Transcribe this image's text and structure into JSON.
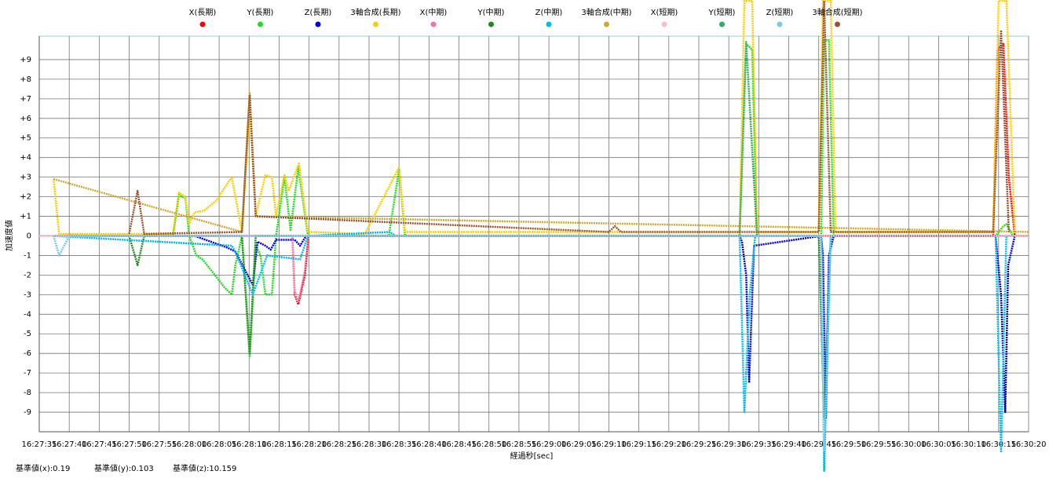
{
  "chart_data": {
    "type": "line",
    "x_label": "経過秒[sec]",
    "y_label": "加速度値",
    "xlim": [
      0,
      165
    ],
    "ylim": [
      -10,
      10.2
    ],
    "grid": true,
    "legend": "top",
    "xticks": [
      {
        "value": 0,
        "label": "16:27:35"
      },
      {
        "value": 5,
        "label": "16:27:40"
      },
      {
        "value": 10,
        "label": "16:27:45"
      },
      {
        "value": 15,
        "label": "16:27:50"
      },
      {
        "value": 20,
        "label": "16:27:55"
      },
      {
        "value": 25,
        "label": "16:28:00"
      },
      {
        "value": 30,
        "label": "16:28:05"
      },
      {
        "value": 35,
        "label": "16:28:10"
      },
      {
        "value": 40,
        "label": "16:28:15"
      },
      {
        "value": 45,
        "label": "16:28:20"
      },
      {
        "value": 50,
        "label": "16:28:25"
      },
      {
        "value": 55,
        "label": "16:28:30"
      },
      {
        "value": 60,
        "label": "16:28:35"
      },
      {
        "value": 65,
        "label": "16:28:40"
      },
      {
        "value": 70,
        "label": "16:28:45"
      },
      {
        "value": 75,
        "label": "16:28:50"
      },
      {
        "value": 80,
        "label": "16:28:55"
      },
      {
        "value": 85,
        "label": "16:29:00"
      },
      {
        "value": 90,
        "label": "16:29:05"
      },
      {
        "value": 95,
        "label": "16:29:10"
      },
      {
        "value": 100,
        "label": "16:29:15"
      },
      {
        "value": 105,
        "label": "16:29:20"
      },
      {
        "value": 110,
        "label": "16:29:25"
      },
      {
        "value": 115,
        "label": "16:29:30"
      },
      {
        "value": 120,
        "label": "16:29:35"
      },
      {
        "value": 125,
        "label": "16:29:40"
      },
      {
        "value": 130,
        "label": "16:29:45"
      },
      {
        "value": 135,
        "label": "16:29:50"
      },
      {
        "value": 140,
        "label": "16:29:55"
      },
      {
        "value": 145,
        "label": "16:30:00"
      },
      {
        "value": 150,
        "label": "16:30:05"
      },
      {
        "value": 155,
        "label": "16:30:10"
      },
      {
        "value": 160,
        "label": "16:30:15"
      },
      {
        "value": 165,
        "label": "16:30:20"
      }
    ],
    "yticks": [
      -9,
      -8,
      -7,
      -6,
      -5,
      -4,
      -3,
      -2,
      -1,
      0,
      {
        "value": 1,
        "label": "+1"
      },
      {
        "value": 2,
        "label": "+2"
      },
      {
        "value": 3,
        "label": "+3"
      },
      {
        "value": 4,
        "label": "+4"
      },
      {
        "value": 5,
        "label": "+5"
      },
      {
        "value": 6,
        "label": "+6"
      },
      {
        "value": 7,
        "label": "+7"
      },
      {
        "value": 8,
        "label": "+8"
      },
      {
        "value": 9,
        "label": "+9"
      }
    ],
    "series": [
      {
        "name": "X(長期)",
        "color": "#ff0000",
        "x": [
          2.4,
          42.2,
          42.6,
          43.2,
          44.3,
          44.9,
          159.1,
          159.8,
          160.8,
          161.7,
          162.7
        ],
        "values": [
          0,
          0,
          -3.0,
          -3.5,
          -2.0,
          0,
          0,
          9.5,
          9.8,
          3.0,
          0
        ]
      },
      {
        "name": "Y(長期)",
        "color": "#22dd22",
        "x": [
          2.4,
          22.3,
          23.3,
          24.4,
          25.0,
          26.2,
          27.2,
          28.8,
          30.8,
          32.1,
          32.7,
          33.8,
          35.1,
          36.1,
          36.9,
          37.7,
          38.8,
          39.5,
          40.9,
          41.9,
          43.2,
          44.8,
          58.3,
          60.0,
          61.0,
          116.8,
          117.9,
          118.9,
          119.7,
          130.4,
          130.9,
          131.7,
          132.5,
          159.5,
          160.8,
          161.3,
          162.4
        ],
        "values": [
          0,
          0,
          2.1,
          1.9,
          0,
          -1.0,
          -1.2,
          -1.8,
          -2.6,
          -3.0,
          -1.5,
          0,
          -6.2,
          -0.5,
          -1.0,
          -3.0,
          -3.0,
          0,
          3.0,
          0.3,
          3.5,
          0,
          0,
          3.4,
          0,
          0,
          9.8,
          9.5,
          0,
          0,
          10.0,
          10.0,
          0,
          0,
          0.5,
          0.6,
          0
        ]
      },
      {
        "name": "Z(長期)",
        "color": "#0000dd",
        "x": [
          2.4,
          25.9,
          31.4,
          32.7,
          35.6,
          36.4,
          37.7,
          38.6,
          39.5,
          42.6,
          43.5,
          44.5,
          116.8,
          117.2,
          117.9,
          118.4,
          119.2,
          130.4,
          130.7,
          131.2,
          131.7,
          132.5,
          159.5,
          160.4,
          161.1,
          161.6,
          162.7
        ],
        "values": [
          0,
          0,
          -0.6,
          -0.8,
          -2.5,
          -0.3,
          -0.5,
          -0.7,
          -0.2,
          -0.2,
          -0.5,
          0,
          0,
          -0.3,
          -2.0,
          -7.5,
          -0.5,
          0,
          -1.0,
          -9.3,
          -1.0,
          0,
          0,
          -3.0,
          -9.0,
          -1.5,
          0
        ]
      },
      {
        "name": "3軸合成(長期)",
        "color": "#ffcc00",
        "x": [
          2.4,
          3.3,
          22.3,
          23.3,
          24.4,
          25.0,
          25.9,
          27.5,
          29.5,
          32.1,
          33.8,
          35.1,
          36.1,
          37.7,
          38.8,
          39.5,
          40.9,
          41.6,
          43.3,
          44.8,
          54.3,
          60.0,
          61.0,
          116.8,
          117.6,
          118.9,
          119.7,
          130.0,
          130.7,
          132.0,
          132.8,
          159.1,
          160.0,
          161.3,
          162.7
        ],
        "values": [
          2.9,
          0.1,
          0.1,
          2.2,
          2.0,
          0.6,
          1.2,
          1.3,
          1.8,
          3.0,
          0.2,
          6.5,
          1.0,
          3.1,
          3.0,
          1.0,
          3.1,
          2.3,
          3.7,
          0.2,
          0.1,
          3.5,
          0.2,
          0.2,
          12,
          12,
          0.2,
          0.2,
          12,
          12,
          0.2,
          0.2,
          12,
          12,
          0.2
        ]
      },
      {
        "name": "X(中期)",
        "color": "#ee77aa",
        "x": [
          2.4,
          42.2,
          42.6,
          43.2,
          44.3,
          44.9,
          165
        ],
        "values": [
          0,
          0,
          -2.8,
          -3.4,
          -1.8,
          0,
          0
        ]
      },
      {
        "name": "Y(中期)",
        "color": "#228822",
        "x": [
          2.4,
          15.0,
          16.4,
          17.5,
          33.8,
          35.1,
          36.1,
          130.0,
          130.9,
          132.0,
          165
        ],
        "values": [
          0,
          0,
          -1.5,
          0,
          0,
          -6.0,
          0,
          0,
          -9.3,
          0,
          0
        ]
      },
      {
        "name": "Z(中期)",
        "color": "#00bbee",
        "x": [
          2.4,
          32.1,
          32.7,
          35.6,
          38.0,
          43.5,
          44.8,
          58.3,
          59.6,
          116.8,
          117.6,
          118.5,
          119.4,
          130.4,
          130.9,
          132.0,
          159.5,
          160.4,
          161.3
        ],
        "values": [
          0,
          -0.5,
          -0.8,
          -3.0,
          -1.0,
          -1.2,
          0,
          0.2,
          0,
          0,
          -9.0,
          -3.0,
          0,
          0,
          -12,
          0,
          0,
          -11,
          0
        ]
      },
      {
        "name": "3軸合成(中期)",
        "color": "#ccaa33",
        "x": [
          2.4,
          33.8,
          35.1,
          36.1,
          165
        ],
        "values": [
          2.9,
          0.2,
          7.3,
          1.0,
          0.2
        ]
      },
      {
        "name": "X(短期)",
        "color": "#ffbbcc",
        "x": [
          0,
          165
        ],
        "values": [
          0,
          0
        ]
      },
      {
        "name": "Y(短期)",
        "color": "#33aa66",
        "x": [
          116.8,
          117.9,
          119.7
        ],
        "values": [
          0,
          9.9,
          0
        ]
      },
      {
        "name": "Z(短期)",
        "color": "#77ccee",
        "x": [
          2.4,
          3.3,
          5.0,
          130.4,
          130.9,
          132.0
        ],
        "values": [
          0,
          -1.0,
          0,
          0,
          -11,
          0
        ]
      },
      {
        "name": "3軸合成(短期)",
        "color": "#995533",
        "x": [
          15.0,
          16.4,
          17.5,
          33.8,
          35.1,
          36.1,
          95.0,
          96.0,
          97.0,
          130.0,
          130.9,
          132.0,
          159.1,
          160.4,
          161.7
        ],
        "values": [
          0.1,
          2.3,
          0.1,
          0.2,
          7.2,
          1.0,
          0.2,
          0.5,
          0.2,
          0.2,
          12,
          0.2,
          0.2,
          10.5,
          0.2
        ]
      }
    ],
    "footer": [
      "基準値(x):0.19",
      "基準値(y):0.103",
      "基準値(z):10.159"
    ]
  }
}
